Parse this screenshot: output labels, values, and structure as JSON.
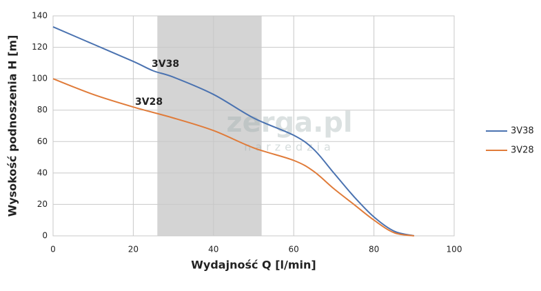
{
  "chart_data": {
    "type": "line",
    "x_label": "Wydajność Q [l/min]",
    "y_label": "Wysokość podnoszenia H [m]",
    "xlim": [
      0,
      100
    ],
    "xticks": [
      0,
      20,
      40,
      60,
      80,
      100
    ],
    "ylim": [
      0,
      140
    ],
    "yticks": [
      0,
      20,
      40,
      60,
      80,
      100,
      120,
      140
    ],
    "grid": true,
    "legend": "right",
    "shaded_region": [
      26,
      52
    ],
    "watermark": "zerga.pl",
    "watermark_sub": "narzedzia",
    "series": [
      {
        "name": "3V38",
        "color": "#4a72b0",
        "x": [
          0,
          10,
          20,
          25,
          30,
          40,
          50,
          60,
          65,
          70,
          75,
          80,
          85,
          90
        ],
        "values": [
          133,
          122,
          111,
          105,
          101,
          90,
          75,
          64,
          55,
          40,
          25,
          12,
          3,
          0
        ]
      },
      {
        "name": "3V28",
        "color": "#e07b39",
        "x": [
          0,
          10,
          20,
          30,
          40,
          50,
          60,
          65,
          70,
          75,
          80,
          85,
          90
        ],
        "values": [
          100,
          90,
          82,
          75,
          67,
          56,
          48,
          41,
          30,
          20,
          10,
          2,
          0
        ]
      }
    ]
  }
}
